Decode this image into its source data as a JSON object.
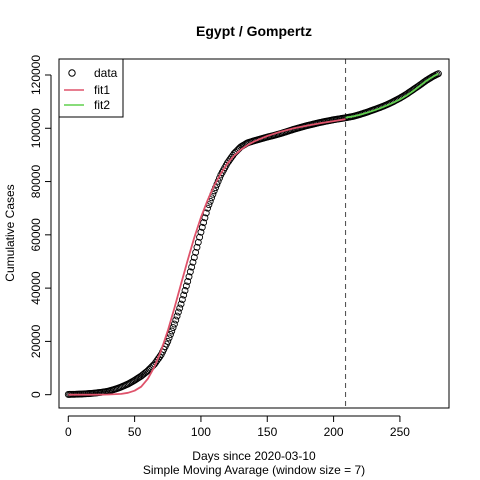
{
  "chart_data": {
    "type": "scatter",
    "title": "Egypt / Gompertz",
    "xlabel": "Days since 2020-03-10",
    "xlabel2": "Simple Moving Avarage (window size = 7)",
    "ylabel": "Cumulative Cases",
    "xlim": [
      -7,
      287
    ],
    "ylim": [
      -5000,
      126000
    ],
    "xticks": [
      0,
      50,
      100,
      150,
      200,
      250
    ],
    "yticks": [
      0,
      20000,
      40000,
      60000,
      80000,
      100000,
      120000
    ],
    "vline_x": 209,
    "legend_position": "top-left",
    "legend": [
      {
        "label": "data",
        "style": "point",
        "color": "#000000"
      },
      {
        "label": "fit1",
        "style": "line",
        "color": "#DF536B"
      },
      {
        "label": "fit2",
        "style": "line",
        "color": "#61D04F"
      }
    ],
    "series": [
      {
        "name": "data",
        "style": "point",
        "color": "#000000",
        "x": [
          0,
          5,
          10,
          15,
          20,
          25,
          30,
          35,
          40,
          45,
          50,
          55,
          60,
          65,
          70,
          75,
          80,
          85,
          90,
          95,
          100,
          105,
          110,
          115,
          120,
          125,
          130,
          135,
          140,
          145,
          150,
          155,
          160,
          165,
          170,
          175,
          180,
          185,
          190,
          195,
          200,
          205,
          210,
          215,
          220,
          225,
          230,
          235,
          240,
          245,
          250,
          255,
          260,
          265,
          270,
          275,
          279
        ],
        "y": [
          100,
          150,
          250,
          400,
          600,
          900,
          1300,
          2000,
          2900,
          4000,
          5400,
          7000,
          9000,
          11500,
          15000,
          20000,
          26500,
          34000,
          42500,
          51500,
          61000,
          70000,
          76500,
          82500,
          87000,
          90500,
          93000,
          94500,
          95300,
          96000,
          96700,
          97300,
          98000,
          98800,
          99600,
          100300,
          101000,
          101600,
          102200,
          102700,
          103200,
          103600,
          104000,
          104500,
          105200,
          106000,
          106900,
          107800,
          108800,
          110000,
          111300,
          112800,
          114500,
          116200,
          118000,
          119500,
          120500
        ]
      },
      {
        "name": "fit1",
        "style": "line",
        "color": "#DF536B",
        "x": [
          0,
          10,
          20,
          30,
          40,
          45,
          50,
          55,
          60,
          65,
          70,
          75,
          80,
          85,
          90,
          95,
          100,
          105,
          110,
          115,
          120,
          125,
          130,
          135,
          140,
          145,
          150,
          160,
          170,
          180,
          190,
          200,
          209
        ],
        "y": [
          0,
          0,
          0,
          50,
          300,
          700,
          1500,
          3000,
          6000,
          10500,
          16500,
          24000,
          32500,
          41500,
          50500,
          59000,
          66500,
          73000,
          78500,
          83000,
          86800,
          89700,
          91900,
          93700,
          95000,
          96100,
          97100,
          98700,
          100000,
          101000,
          101900,
          102700,
          103400
        ]
      },
      {
        "name": "fit2",
        "style": "line",
        "color": "#61D04F",
        "x": [
          209,
          215,
          220,
          225,
          230,
          235,
          240,
          245,
          250,
          255,
          260,
          265,
          270,
          275,
          279
        ],
        "y": [
          104000,
          104500,
          105100,
          105800,
          106600,
          107500,
          108500,
          109600,
          110800,
          112300,
          114000,
          115900,
          117800,
          119400,
          120500
        ]
      }
    ]
  }
}
